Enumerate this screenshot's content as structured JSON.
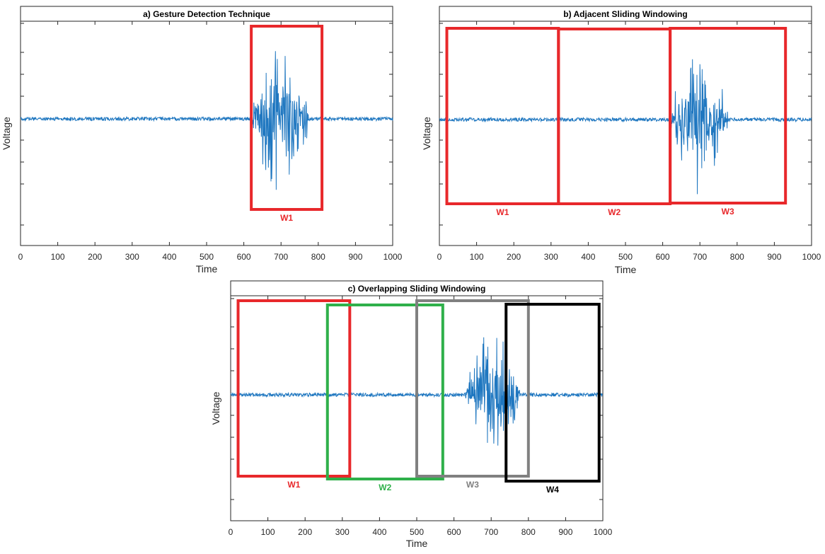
{
  "chart_data": [
    {
      "type": "line",
      "title": "a) Gesture Detection Technique",
      "xlabel": "Time",
      "ylabel": "Voltage",
      "xlim": [
        0,
        1000
      ],
      "xticks": [
        "0",
        "100",
        "200",
        "300",
        "400",
        "500",
        "600",
        "700",
        "800",
        "900",
        "1000"
      ],
      "burst": [
        620,
        800
      ],
      "windows": [
        {
          "label": "W1",
          "x0": 620,
          "x1": 810,
          "color": "#e8282b"
        }
      ]
    },
    {
      "type": "line",
      "title": "b) Adjacent Sliding Windowing",
      "xlabel": "Time",
      "ylabel": "Voltage",
      "xlim": [
        0,
        1000
      ],
      "xticks": [
        "0",
        "100",
        "200",
        "300",
        "400",
        "500",
        "600",
        "700",
        "800",
        "900",
        "1000"
      ],
      "burst": [
        620,
        800
      ],
      "windows": [
        {
          "label": "W1",
          "x0": 20,
          "x1": 320,
          "color": "#e8282b"
        },
        {
          "label": "W2",
          "x0": 320,
          "x1": 620,
          "color": "#e8282b"
        },
        {
          "label": "W3",
          "x0": 620,
          "x1": 930,
          "color": "#e8282b"
        }
      ]
    },
    {
      "type": "line",
      "title": "c) Overlapping Sliding Windowing",
      "xlabel": "Time",
      "ylabel": "Voltage",
      "xlim": [
        0,
        1000
      ],
      "xticks": [
        "0",
        "100",
        "200",
        "300",
        "400",
        "500",
        "600",
        "700",
        "800",
        "900",
        "1000"
      ],
      "burst": [
        630,
        800
      ],
      "windows": [
        {
          "label": "W1",
          "x0": 20,
          "x1": 320,
          "color": "#e8282b"
        },
        {
          "label": "W2",
          "x0": 260,
          "x1": 570,
          "color": "#2fb04a"
        },
        {
          "label": "W3",
          "x0": 500,
          "x1": 800,
          "color": "#808080"
        },
        {
          "label": "W4",
          "x0": 740,
          "x1": 990,
          "color": "#000000"
        }
      ]
    }
  ],
  "colors": {
    "signal": "#1f77c0"
  }
}
